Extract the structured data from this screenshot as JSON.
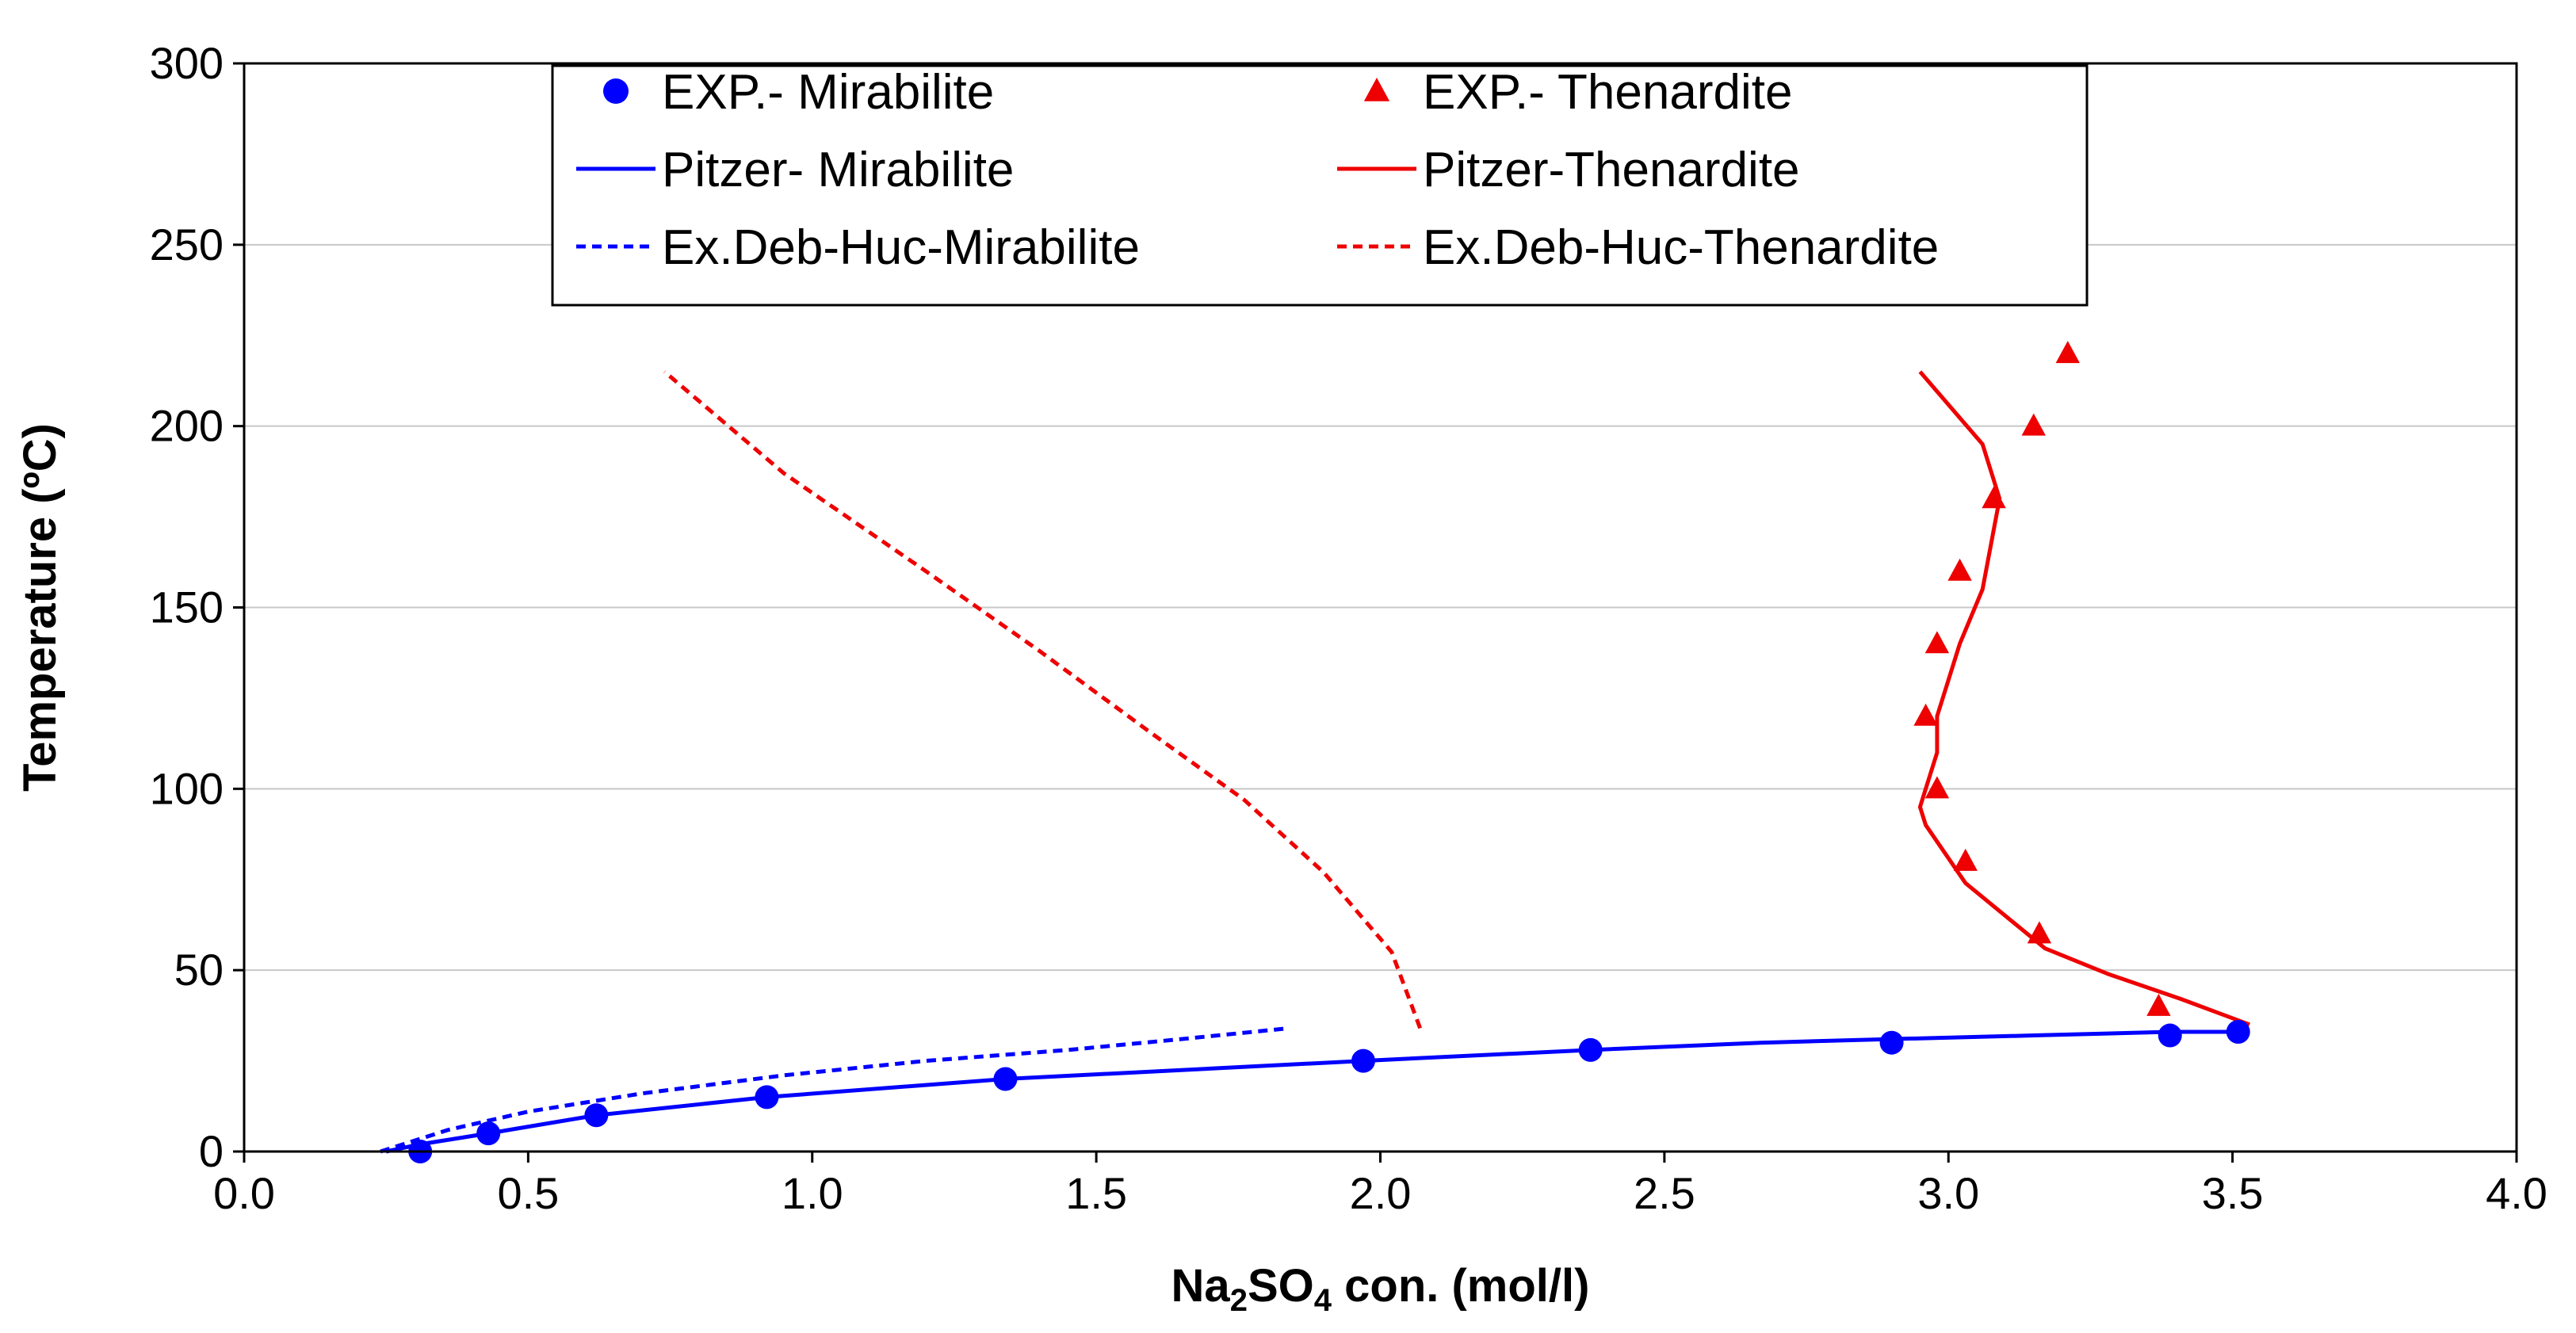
{
  "chart_data": {
    "type": "scatter",
    "title": "",
    "xlabel": {
      "main": "Na",
      "sub1": "2",
      "mid": "SO",
      "sub2": "4",
      "tail": " con. (mol/l)"
    },
    "ylabel": "Temperature (ºC)",
    "xlim": [
      0,
      4
    ],
    "ylim": [
      0,
      300
    ],
    "x_ticks": [
      "0.0",
      "0.5",
      "1.0",
      "1.5",
      "2.0",
      "2.5",
      "3.0",
      "3.5",
      "4.0"
    ],
    "y_ticks": [
      "0",
      "50",
      "100",
      "150",
      "200",
      "250",
      "300"
    ],
    "grid": "horizontal",
    "legend_position": "top",
    "series": [
      {
        "name": "EXP.- Mirabilite",
        "kind": "marker-circle",
        "color": "#0000ff",
        "x": [
          0.31,
          0.43,
          0.62,
          0.92,
          1.34,
          1.97,
          2.37,
          2.9,
          3.39,
          3.51
        ],
        "y": [
          0,
          5,
          10,
          15,
          20,
          25,
          28,
          30,
          32,
          33
        ]
      },
      {
        "name": "EXP.- Thenardite",
        "kind": "marker-triangle",
        "color": "#ee0000",
        "x": [
          3.37,
          3.16,
          3.03,
          2.98,
          2.96,
          2.98,
          3.02,
          3.08,
          3.15,
          3.21
        ],
        "y": [
          40,
          60,
          80,
          100,
          120,
          140,
          160,
          180,
          200,
          220
        ]
      },
      {
        "name": "Pitzer- Mirabilite",
        "kind": "line-solid",
        "color": "#0000ff",
        "x": [
          0.25,
          0.31,
          0.43,
          0.62,
          0.92,
          1.34,
          1.97,
          2.37,
          2.67,
          2.9,
          3.15,
          3.39,
          3.53
        ],
        "y": [
          0,
          2,
          5,
          10,
          15,
          20,
          25,
          28,
          30,
          31,
          32,
          33,
          33
        ]
      },
      {
        "name": "Pitzer-Thenardite",
        "kind": "line-solid",
        "color": "#ee0000",
        "x": [
          3.53,
          3.41,
          3.28,
          3.17,
          3.03,
          2.96,
          2.95,
          2.98,
          2.98,
          3.02,
          3.06,
          3.09,
          3.06,
          2.95
        ],
        "y": [
          35,
          42,
          49,
          56,
          74,
          90,
          95,
          110,
          120,
          140,
          155,
          180,
          195,
          215
        ]
      },
      {
        "name": "Ex.Deb-Huc-Mirabilite",
        "kind": "line-dashed",
        "color": "#0000ff",
        "x": [
          0.24,
          0.36,
          0.5,
          0.7,
          0.95,
          1.2,
          1.45,
          1.65,
          1.84
        ],
        "y": [
          0,
          6,
          11,
          16,
          21,
          25,
          28,
          31,
          34
        ]
      },
      {
        "name": "Ex.Deb-Huc-Thenardite",
        "kind": "line-dashed",
        "color": "#ee0000",
        "x": [
          2.07,
          2.02,
          1.9,
          1.76,
          1.6,
          1.4,
          1.2,
          0.95,
          0.74
        ],
        "y": [
          34,
          55,
          77,
          97,
          115,
          138,
          160,
          187,
          215
        ]
      }
    ]
  }
}
